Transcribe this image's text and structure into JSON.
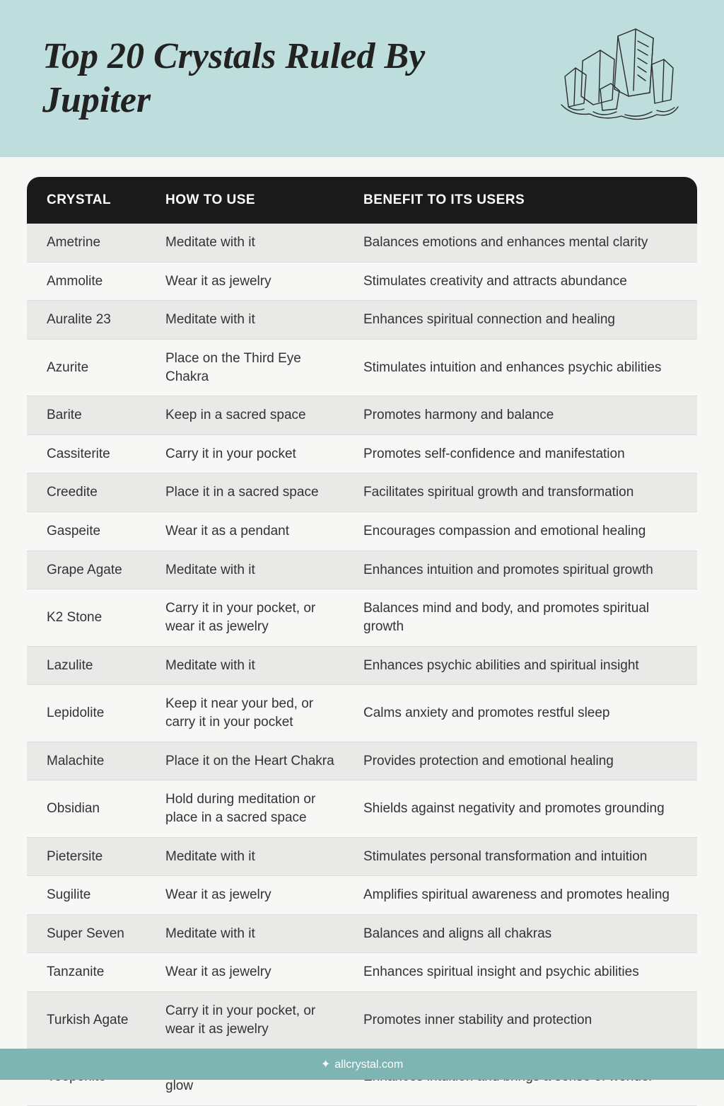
{
  "title": "Top 20 Crystals Ruled By Jupiter",
  "columns": [
    "CRYSTAL",
    "HOW TO USE",
    "BENEFIT TO ITS USERS"
  ],
  "rows": [
    [
      "Ametrine",
      "Meditate with it",
      "Balances emotions and enhances mental clarity"
    ],
    [
      "Ammolite",
      "Wear it as jewelry",
      "Stimulates creativity and attracts abundance"
    ],
    [
      "Auralite 23",
      "Meditate with it",
      "Enhances spiritual connection and healing"
    ],
    [
      "Azurite",
      "Place on the Third Eye Chakra",
      "Stimulates intuition and enhances psychic abilities"
    ],
    [
      "Barite",
      "Keep in a sacred space",
      "Promotes harmony and balance"
    ],
    [
      "Cassiterite",
      "Carry it in your pocket",
      "Promotes self-confidence and manifestation"
    ],
    [
      "Creedite",
      "Place it in a sacred space",
      "Facilitates spiritual growth and transformation"
    ],
    [
      "Gaspeite",
      "Wear it as a pendant",
      "Encourages compassion and emotional healing"
    ],
    [
      "Grape Agate",
      "Meditate with it",
      "Enhances intuition and promotes spiritual growth"
    ],
    [
      "K2 Stone",
      "Carry it in your pocket, or wear it as jewelry",
      "Balances mind and body, and promotes spiritual growth"
    ],
    [
      "Lazulite",
      "Meditate with it",
      "Enhances psychic abilities and spiritual insight"
    ],
    [
      "Lepidolite",
      "Keep it near your bed, or carry it in your pocket",
      "Calms anxiety and promotes restful sleep"
    ],
    [
      "Malachite",
      "Place it on the Heart Chakra",
      "Provides protection and emotional healing"
    ],
    [
      "Obsidian",
      "Hold during meditation or place in a sacred space",
      "Shields against negativity and promotes grounding"
    ],
    [
      "Pietersite",
      "Meditate with it",
      "Stimulates personal transformation and intuition"
    ],
    [
      "Sugilite",
      "Wear it as jewelry",
      "Amplifies spiritual awareness and promotes healing"
    ],
    [
      "Super Seven",
      "Meditate with it",
      "Balances and aligns all chakras"
    ],
    [
      "Tanzanite",
      "Wear it as jewelry",
      "Enhances spiritual insight and psychic abilities"
    ],
    [
      "Turkish Agate",
      "Carry it in your pocket, or wear it as jewelry",
      "Promotes inner stability and protection"
    ],
    [
      "Yooperlite",
      "Use UV light to observe its glow",
      "Enhances intuition and brings a sense of wonder"
    ]
  ],
  "footer": "allcrystal.com",
  "colors": {
    "header_bg": "#bddedc",
    "thead_bg": "#1a1a1a",
    "row_odd": "#e9e9e7",
    "row_even": "#f7f7f5",
    "footer_bg": "#7eb5b2"
  }
}
